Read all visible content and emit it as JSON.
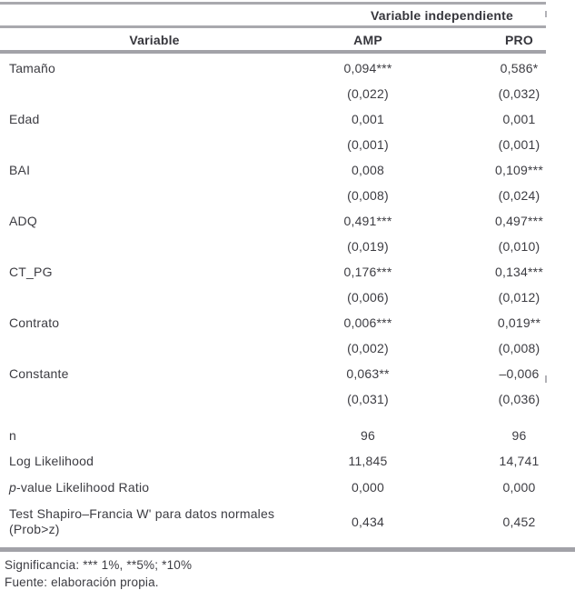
{
  "header": {
    "group": "Variable independiente",
    "col_variable": "Variable",
    "col_amp": "AMP",
    "col_pro": "PRO"
  },
  "coefficients": [
    {
      "label": "Tamaño",
      "amp": "0,094***",
      "pro": "0,586*"
    },
    {
      "label": "",
      "amp": "(0,022)",
      "pro": "(0,032)"
    },
    {
      "label": "Edad",
      "amp": "0,001",
      "pro": "0,001"
    },
    {
      "label": "",
      "amp": "(0,001)",
      "pro": "(0,001)"
    },
    {
      "label": "BAI",
      "amp": "0,008",
      "pro": "0,109***"
    },
    {
      "label": "",
      "amp": "(0,008)",
      "pro": "(0,024)"
    },
    {
      "label": "ADQ",
      "amp": "0,491***",
      "pro": "0,497***"
    },
    {
      "label": "",
      "amp": "(0,019)",
      "pro": "(0,010)"
    },
    {
      "label": "CT_PG",
      "amp": "0,176***",
      "pro": "0,134***"
    },
    {
      "label": "",
      "amp": "(0,006)",
      "pro": "(0,012)"
    },
    {
      "label": "Contrato",
      "amp": "0,006***",
      "pro": "0,019**"
    },
    {
      "label": "",
      "amp": "(0,002)",
      "pro": "(0,008)"
    },
    {
      "label": "Constante",
      "amp": "0,063**",
      "pro": "–0,006"
    },
    {
      "label": "",
      "amp": "(0,031)",
      "pro": "(0,036)"
    }
  ],
  "stats": [
    {
      "label": "n",
      "amp": "96",
      "pro": "96"
    },
    {
      "label": "Log Likelihood",
      "amp": "11,845",
      "pro": "14,741"
    },
    {
      "label_italic": "p",
      "label_rest": "-value Likelihood Ratio",
      "amp": "0,000",
      "pro": "0,000"
    },
    {
      "label": "Test Shapiro–Francia W' para datos normales (Prob>z)",
      "amp": "0,434",
      "pro": "0,452"
    }
  ],
  "footnotes": {
    "significance": "Significancia: *** 1%, **5%; *10%",
    "source": "Fuente: elaboración propia."
  }
}
